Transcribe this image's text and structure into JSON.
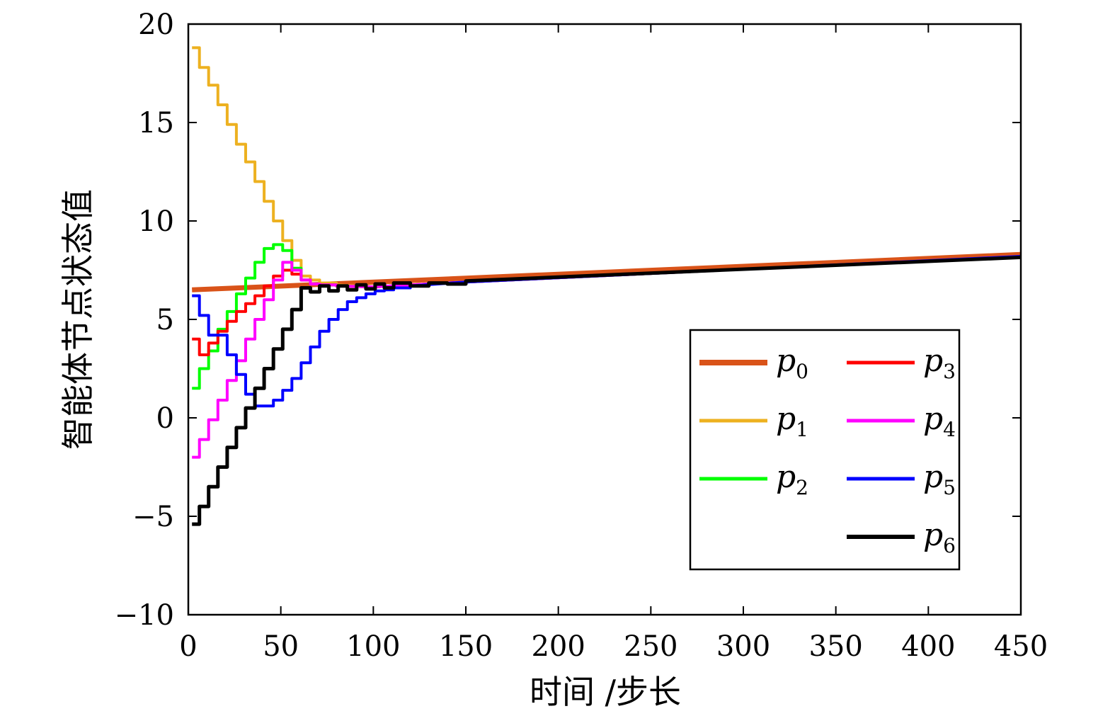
{
  "chart_data": {
    "type": "line",
    "title": "",
    "xlabel": "时间 /步长",
    "ylabel": "智能体节点状态值",
    "xlim": [
      0,
      450
    ],
    "ylim": [
      -10,
      20
    ],
    "xticks": [
      0,
      50,
      100,
      150,
      200,
      250,
      300,
      350,
      400,
      450
    ],
    "yticks": [
      -10,
      -5,
      0,
      5,
      10,
      15,
      20
    ],
    "xtick_labels": [
      "0",
      "50",
      "100",
      "150",
      "200",
      "250",
      "300",
      "350",
      "400",
      "450"
    ],
    "ytick_labels": [
      "−10",
      "−5",
      "0",
      "5",
      "10",
      "15",
      "20"
    ],
    "grid": false,
    "legend_position": "center-right",
    "series": [
      {
        "name": "p",
        "sub": "0",
        "color": "#d95319",
        "width": 7,
        "x": [
          2,
          450
        ],
        "y": [
          6.5,
          8.3
        ]
      },
      {
        "name": "p",
        "sub": "1",
        "color": "#edb120",
        "width": 4,
        "x": [
          2,
          6,
          11,
          16,
          21,
          26,
          31,
          36,
          41,
          46,
          51,
          56,
          61,
          66,
          71,
          80,
          100,
          150,
          450
        ],
        "y": [
          18.8,
          17.8,
          16.9,
          15.9,
          14.9,
          13.9,
          13.0,
          12.0,
          11.0,
          10.0,
          9.0,
          8.0,
          7.2,
          7.0,
          6.85,
          6.75,
          6.65,
          6.9,
          8.2
        ]
      },
      {
        "name": "p",
        "sub": "2",
        "color": "#00ff00",
        "width": 4,
        "x": [
          2,
          6,
          11,
          16,
          21,
          26,
          31,
          36,
          41,
          46,
          51,
          56,
          61,
          66,
          71,
          80,
          100,
          150,
          450
        ],
        "y": [
          1.5,
          2.5,
          3.4,
          4.5,
          5.4,
          6.3,
          7.1,
          7.9,
          8.6,
          8.8,
          8.5,
          7.6,
          7.0,
          6.8,
          6.75,
          6.7,
          6.65,
          6.9,
          8.2
        ]
      },
      {
        "name": "p",
        "sub": "3",
        "color": "#ff0000",
        "width": 4,
        "x": [
          2,
          6,
          11,
          16,
          21,
          26,
          31,
          36,
          41,
          46,
          51,
          56,
          61,
          66,
          71,
          80,
          100,
          150,
          450
        ],
        "y": [
          4.0,
          3.2,
          3.8,
          4.4,
          4.9,
          5.4,
          5.8,
          6.2,
          6.7,
          7.2,
          7.5,
          7.3,
          7.0,
          6.8,
          6.75,
          6.7,
          6.65,
          6.9,
          8.2
        ]
      },
      {
        "name": "p",
        "sub": "4",
        "color": "#ff00ff",
        "width": 4,
        "x": [
          2,
          6,
          11,
          16,
          21,
          26,
          31,
          36,
          41,
          46,
          51,
          56,
          61,
          66,
          71,
          80,
          100,
          150,
          450
        ],
        "y": [
          -2.0,
          -1.1,
          -0.1,
          0.9,
          1.9,
          2.9,
          4.0,
          5.0,
          6.0,
          7.0,
          7.9,
          7.5,
          7.0,
          6.8,
          6.75,
          6.7,
          6.65,
          6.9,
          8.2
        ]
      },
      {
        "name": "p",
        "sub": "5",
        "color": "#0000ff",
        "width": 4,
        "x": [
          2,
          6,
          11,
          16,
          21,
          26,
          31,
          36,
          41,
          46,
          51,
          56,
          61,
          66,
          71,
          76,
          81,
          86,
          91,
          96,
          101,
          106,
          111,
          120,
          150,
          450
        ],
        "y": [
          6.2,
          5.2,
          4.2,
          4.2,
          3.2,
          2.2,
          1.2,
          0.6,
          0.6,
          0.9,
          1.4,
          2.0,
          2.8,
          3.6,
          4.4,
          5.0,
          5.5,
          5.9,
          6.1,
          6.3,
          6.45,
          6.5,
          6.6,
          6.7,
          6.9,
          8.2
        ]
      },
      {
        "name": "p",
        "sub": "6",
        "color": "#000000",
        "width": 5,
        "x": [
          2,
          6,
          11,
          16,
          21,
          26,
          31,
          36,
          41,
          46,
          51,
          56,
          61,
          66,
          71,
          76,
          81,
          86,
          91,
          96,
          101,
          106,
          111,
          120,
          130,
          140,
          150,
          450
        ],
        "y": [
          -5.4,
          -4.5,
          -3.5,
          -2.5,
          -1.5,
          -0.5,
          0.5,
          1.5,
          2.5,
          3.5,
          4.5,
          5.5,
          6.6,
          6.4,
          6.7,
          6.45,
          6.7,
          6.5,
          6.75,
          6.55,
          6.8,
          6.6,
          6.85,
          6.7,
          6.85,
          6.8,
          6.95,
          8.15
        ]
      }
    ]
  }
}
